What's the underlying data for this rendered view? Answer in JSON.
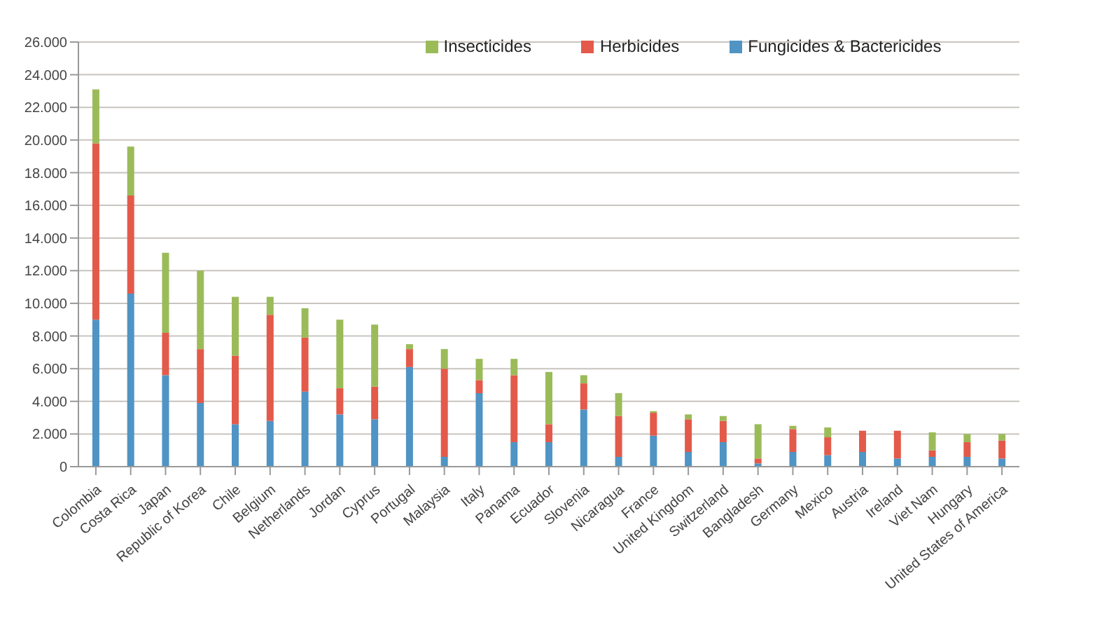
{
  "chart_data": {
    "type": "bar",
    "stacked": true,
    "categories": [
      "Colombia",
      "Costa Rica",
      "Japan",
      "Republic of Korea",
      "Chile",
      "Belgium",
      "Netherlands",
      "Jordan",
      "Cyprus",
      "Portugal",
      "Malaysia",
      "Italy",
      "Panama",
      "Ecuador",
      "Slovenia",
      "Nicaragua",
      "France",
      "United Kingdom",
      "Switzerland",
      "Bangladesh",
      "Germany",
      "Mexico",
      "Austria",
      "Ireland",
      "Viet Nam",
      "Hungary",
      "United States of America"
    ],
    "series": [
      {
        "name": "Fungicides & Bactericides",
        "color": "#4f94c4",
        "values": [
          9000,
          10600,
          5600,
          3900,
          2600,
          2800,
          4600,
          3200,
          2900,
          6100,
          600,
          4500,
          1500,
          1500,
          3500,
          600,
          1900,
          900,
          1500,
          200,
          900,
          700,
          900,
          500,
          600,
          600,
          500
        ]
      },
      {
        "name": "Herbicides",
        "color": "#e35a4a",
        "values": [
          10800,
          6000,
          2600,
          3300,
          4200,
          6500,
          3300,
          1600,
          2000,
          1100,
          5400,
          800,
          4100,
          1100,
          1600,
          2500,
          1400,
          2000,
          1300,
          300,
          1400,
          1100,
          1300,
          1700,
          400,
          900,
          1100
        ]
      },
      {
        "name": "Insecticides",
        "color": "#9bbb59",
        "values": [
          3300,
          3000,
          4900,
          4800,
          3600,
          1100,
          1800,
          4200,
          3800,
          300,
          1200,
          1300,
          1000,
          3200,
          500,
          1400,
          100,
          300,
          300,
          2100,
          200,
          600,
          0,
          0,
          1100,
          500,
          400
        ]
      }
    ],
    "ylim": [
      0,
      26000
    ],
    "yticks": [
      {
        "value": 0,
        "label": "0"
      },
      {
        "value": 2000,
        "label": "2.000"
      },
      {
        "value": 4000,
        "label": "4.000"
      },
      {
        "value": 6000,
        "label": "6.000"
      },
      {
        "value": 8000,
        "label": "8.000"
      },
      {
        "value": 10000,
        "label": "10.000"
      },
      {
        "value": 12000,
        "label": "12.000"
      },
      {
        "value": 14000,
        "label": "14.000"
      },
      {
        "value": 16000,
        "label": "16.000"
      },
      {
        "value": 18000,
        "label": "18.000"
      },
      {
        "value": 20000,
        "label": "20.000"
      },
      {
        "value": 22000,
        "label": "22.000"
      },
      {
        "value": 24000,
        "label": "24.000"
      },
      {
        "value": 26000,
        "label": "26.000"
      }
    ],
    "grid": "y",
    "legend": "top"
  }
}
